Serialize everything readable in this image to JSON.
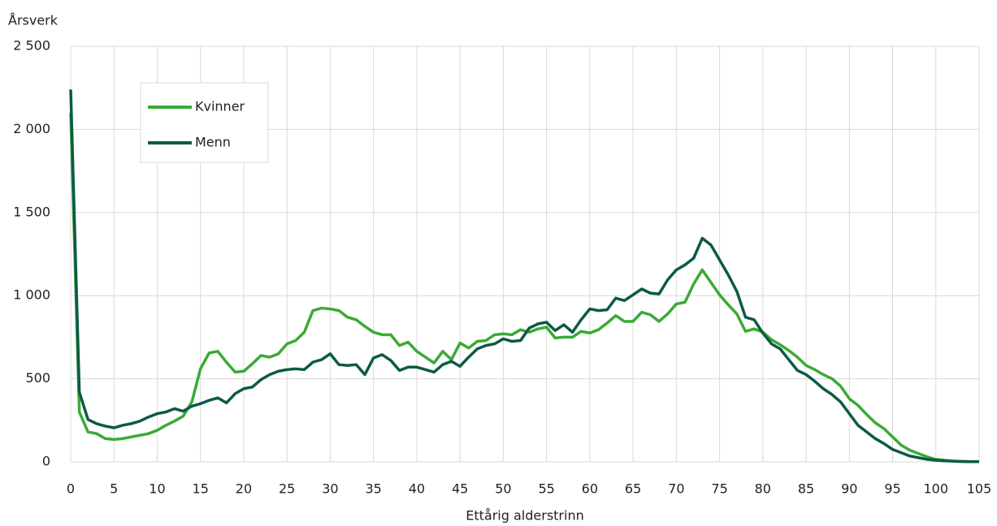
{
  "chart_data": {
    "type": "line",
    "y_label": "Årsverk",
    "x_label": "Ettårig alderstrinn",
    "x": [
      0,
      1,
      2,
      3,
      4,
      5,
      6,
      7,
      8,
      9,
      10,
      11,
      12,
      13,
      14,
      15,
      16,
      17,
      18,
      19,
      20,
      21,
      22,
      23,
      24,
      25,
      26,
      27,
      28,
      29,
      30,
      31,
      32,
      33,
      34,
      35,
      36,
      37,
      38,
      39,
      40,
      41,
      42,
      43,
      44,
      45,
      46,
      47,
      48,
      49,
      50,
      51,
      52,
      53,
      54,
      55,
      56,
      57,
      58,
      59,
      60,
      61,
      62,
      63,
      64,
      65,
      66,
      67,
      68,
      69,
      70,
      71,
      72,
      73,
      74,
      75,
      76,
      77,
      78,
      79,
      80,
      81,
      82,
      83,
      84,
      85,
      86,
      87,
      88,
      89,
      90,
      91,
      92,
      93,
      94,
      95,
      96,
      97,
      98,
      99,
      100,
      101,
      102,
      103,
      104,
      105
    ],
    "series": [
      {
        "name": "Kvinner",
        "color": "#3aaa35",
        "values": [
          2100,
          300,
          180,
          170,
          140,
          135,
          140,
          150,
          160,
          170,
          190,
          220,
          245,
          275,
          360,
          560,
          655,
          665,
          600,
          540,
          545,
          590,
          640,
          630,
          650,
          710,
          730,
          780,
          910,
          925,
          920,
          910,
          870,
          855,
          815,
          780,
          765,
          765,
          700,
          720,
          665,
          630,
          595,
          665,
          615,
          715,
          685,
          725,
          730,
          765,
          770,
          765,
          795,
          780,
          800,
          810,
          745,
          750,
          750,
          785,
          775,
          795,
          835,
          880,
          845,
          845,
          900,
          885,
          845,
          890,
          950,
          960,
          1070,
          1155,
          1080,
          1005,
          945,
          890,
          785,
          800,
          780,
          735,
          705,
          670,
          630,
          580,
          555,
          525,
          500,
          455,
          380,
          340,
          285,
          235,
          200,
          150,
          100,
          70,
          50,
          30,
          15,
          10,
          5,
          3,
          2,
          1
        ]
      },
      {
        "name": "Menn",
        "color": "#0c5a45",
        "values": [
          2240,
          420,
          255,
          230,
          215,
          205,
          220,
          230,
          245,
          270,
          290,
          300,
          320,
          305,
          335,
          350,
          370,
          385,
          355,
          410,
          440,
          450,
          495,
          525,
          545,
          555,
          560,
          555,
          600,
          615,
          650,
          585,
          580,
          585,
          525,
          625,
          645,
          610,
          550,
          570,
          570,
          555,
          540,
          585,
          605,
          575,
          630,
          680,
          700,
          710,
          740,
          725,
          730,
          805,
          830,
          840,
          790,
          825,
          780,
          855,
          920,
          910,
          915,
          985,
          970,
          1005,
          1040,
          1015,
          1010,
          1095,
          1155,
          1185,
          1225,
          1345,
          1305,
          1215,
          1125,
          1025,
          870,
          855,
          775,
          710,
          680,
          615,
          550,
          525,
          485,
          440,
          405,
          360,
          290,
          220,
          180,
          140,
          110,
          75,
          55,
          35,
          25,
          15,
          10,
          6,
          4,
          2,
          1,
          1
        ]
      }
    ],
    "xlim": [
      0,
      105
    ],
    "xticks": [
      0,
      5,
      10,
      15,
      20,
      25,
      30,
      35,
      40,
      45,
      50,
      55,
      60,
      65,
      70,
      75,
      80,
      85,
      90,
      95,
      100,
      105
    ],
    "ylim": [
      0,
      2500
    ],
    "yticks": [
      0,
      500,
      {
        "value": 1000,
        "label": "1 000"
      },
      {
        "value": 1500,
        "label": "1 500"
      },
      {
        "value": 2000,
        "label": "2 000"
      },
      {
        "value": 2500,
        "label": "2 500"
      }
    ],
    "grid": true
  }
}
